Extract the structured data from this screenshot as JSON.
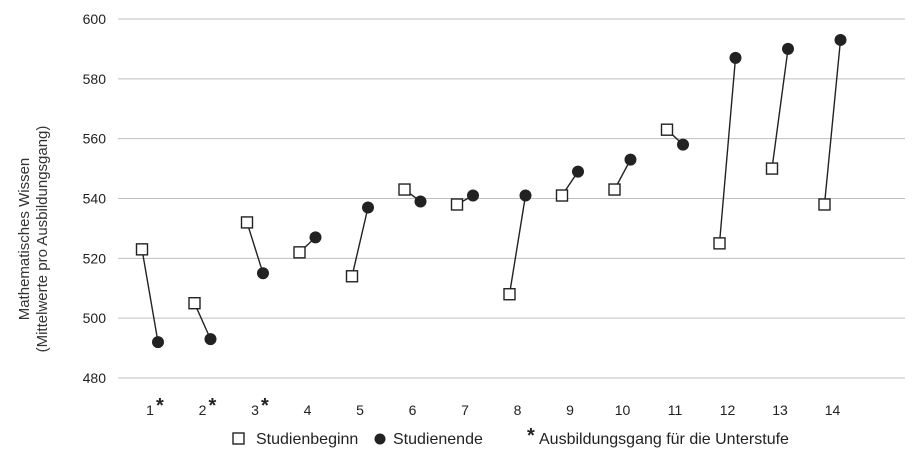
{
  "chart_data": {
    "type": "scatter",
    "ylabel": "Mathematisches Wissen",
    "ylabel_sub": "(Mittelwerte pro Ausbildungsgang)",
    "ylim": [
      480,
      600
    ],
    "yticks": [
      480,
      500,
      520,
      540,
      560,
      580,
      600
    ],
    "grid": true,
    "categories": [
      "1",
      "2",
      "3",
      "4",
      "5",
      "6",
      "7",
      "8",
      "9",
      "10",
      "11",
      "12",
      "13",
      "14"
    ],
    "lower_level_marked": [
      true,
      true,
      true,
      false,
      false,
      false,
      false,
      false,
      false,
      false,
      false,
      false,
      false,
      false
    ],
    "series": [
      {
        "name": "Studienbeginn",
        "marker": "open-square",
        "values": [
          523,
          505,
          532,
          522,
          514,
          543,
          538,
          508,
          541,
          543,
          563,
          525,
          550,
          538
        ]
      },
      {
        "name": "Studienende",
        "marker": "filled-circle",
        "values": [
          492,
          493,
          515,
          527,
          537,
          539,
          541,
          541,
          549,
          553,
          558,
          587,
          590,
          593
        ]
      }
    ],
    "legend": {
      "position": "bottom",
      "items": [
        "Studienbeginn",
        "Studienende"
      ],
      "note_symbol": "*",
      "note": "Ausbildungsgang für die Unterstufe"
    }
  },
  "colors": {
    "grid": "#bfbfbf",
    "marker": "#222222",
    "line": "#222222",
    "text": "#222222"
  }
}
